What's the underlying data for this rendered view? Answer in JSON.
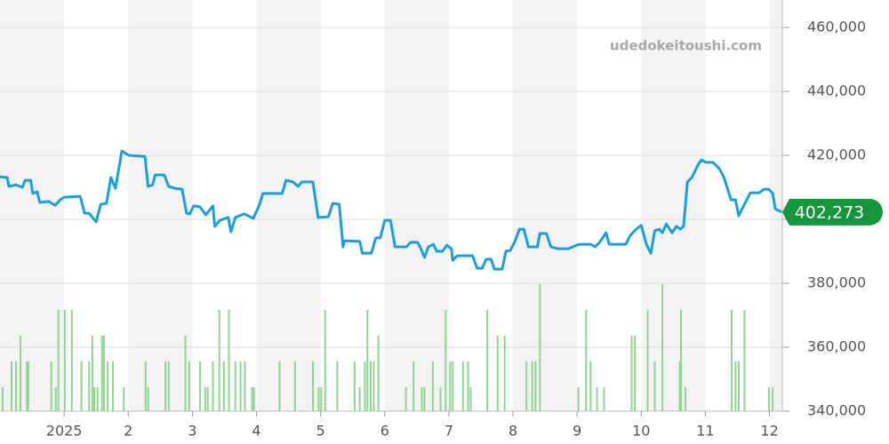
{
  "chart_data": {
    "type": "line",
    "watermark": "udedokeitoushi.com",
    "xlim": [
      0,
      12.2
    ],
    "xticks": [
      {
        "value": 1,
        "label": "2025"
      },
      2,
      3,
      4,
      5,
      6,
      7,
      8,
      9,
      10,
      11,
      12
    ],
    "ylim": [
      340000,
      460000
    ],
    "yticks": [
      {
        "value": 340000,
        "label": "340,000"
      },
      {
        "value": 360000,
        "label": "360,000"
      },
      {
        "value": 380000,
        "label": "380,000"
      },
      {
        "value": 400000,
        "label": "400,000"
      },
      {
        "value": 420000,
        "label": "420,000"
      },
      {
        "value": 440000,
        "label": "440,000"
      },
      {
        "value": 460000,
        "label": "460,000"
      }
    ],
    "grid": true,
    "last_price": {
      "value": 402273,
      "label": "402,273",
      "color": "#16963c"
    },
    "series": [
      {
        "type": "bar",
        "color": "#8dd68d",
        "x": [
          0.04,
          0.18,
          0.25,
          0.32,
          0.42,
          0.44,
          0.8,
          0.87,
          0.91,
          1.01,
          1.12,
          1.27,
          1.39,
          1.44,
          1.47,
          1.52,
          1.59,
          1.62,
          1.68,
          1.76,
          1.93,
          2.27,
          2.31,
          2.58,
          2.63,
          2.89,
          2.95,
          3.12,
          3.2,
          3.24,
          3.32,
          3.42,
          3.49,
          3.57,
          3.67,
          3.75,
          3.82,
          3.93,
          3.96,
          4.36,
          4.6,
          4.88,
          4.97,
          5.01,
          5.07,
          5.26,
          5.53,
          5.61,
          5.69,
          5.73,
          5.78,
          5.83,
          5.9,
          6.33,
          6.45,
          6.58,
          6.62,
          6.75,
          6.87,
          6.95,
          7.02,
          7.06,
          7.22,
          7.3,
          7.34,
          7.6,
          7.76,
          7.87,
          8.21,
          8.3,
          8.35,
          8.42,
          9.02,
          9.14,
          9.21,
          9.31,
          9.42,
          9.85,
          9.9,
          10.1,
          10.21,
          10.33,
          10.6,
          10.62,
          10.69,
          11.41,
          11.47,
          11.52,
          11.61,
          11.99,
          12.05
        ],
        "values": [
          347500,
          355600,
          355600,
          363600,
          355600,
          355600,
          355600,
          347500,
          371700,
          371700,
          371700,
          355600,
          355600,
          363600,
          347500,
          347500,
          363600,
          363600,
          355600,
          355600,
          347500,
          355600,
          347500,
          355600,
          355600,
          363600,
          355600,
          355600,
          347500,
          347500,
          355600,
          371700,
          355600,
          371700,
          355600,
          355600,
          355600,
          347500,
          347500,
          355600,
          355600,
          355600,
          347500,
          347500,
          371700,
          355600,
          355600,
          347500,
          355600,
          371700,
          355600,
          355600,
          363600,
          347500,
          355600,
          347500,
          347500,
          355600,
          347500,
          371700,
          355600,
          355600,
          355600,
          355600,
          347500,
          371700,
          363600,
          363600,
          355600,
          355600,
          355600,
          379700,
          347500,
          371700,
          355600,
          347500,
          347500,
          363600,
          363600,
          371700,
          355600,
          379700,
          355600,
          371700,
          347500,
          371700,
          355600,
          355600,
          371700,
          347500,
          347500
        ]
      },
      {
        "type": "line",
        "color": "#1a9fdc",
        "x": [
          0.0,
          0.11,
          0.14,
          0.25,
          0.35,
          0.39,
          0.48,
          0.51,
          0.58,
          0.62,
          0.76,
          0.86,
          0.94,
          1.0,
          1.25,
          1.32,
          1.39,
          1.5,
          1.57,
          1.66,
          1.73,
          1.8,
          1.9,
          2.01,
          2.26,
          2.31,
          2.38,
          2.42,
          2.56,
          2.63,
          2.73,
          2.84,
          2.91,
          2.96,
          3.02,
          3.12,
          3.21,
          3.32,
          3.35,
          3.43,
          3.56,
          3.6,
          3.67,
          3.81,
          3.95,
          4.04,
          4.1,
          4.4,
          4.46,
          4.57,
          4.65,
          4.71,
          4.88,
          4.96,
          5.12,
          5.19,
          5.29,
          5.35,
          5.37,
          5.61,
          5.65,
          5.79,
          5.86,
          5.93,
          6.0,
          6.09,
          6.16,
          6.34,
          6.4,
          6.51,
          6.55,
          6.62,
          6.68,
          6.76,
          6.81,
          6.9,
          6.97,
          7.04,
          7.06,
          7.13,
          7.37,
          7.44,
          7.52,
          7.58,
          7.66,
          7.71,
          7.83,
          7.89,
          7.96,
          8.03,
          8.1,
          8.17,
          8.24,
          8.38,
          8.42,
          8.52,
          8.59,
          8.7,
          8.86,
          9.03,
          9.21,
          9.28,
          9.35,
          9.45,
          9.5,
          9.76,
          9.83,
          9.92,
          10.0,
          10.08,
          10.15,
          10.21,
          10.28,
          10.33,
          10.39,
          10.48,
          10.55,
          10.61,
          10.66,
          10.72,
          10.79,
          10.89,
          10.94,
          11.01,
          11.12,
          11.22,
          11.29,
          11.4,
          11.47,
          11.52,
          11.61,
          11.7,
          11.84,
          11.91,
          11.99,
          12.05,
          12.09,
          12.19
        ],
        "values": [
          413300,
          413100,
          410300,
          410800,
          410000,
          412200,
          412200,
          408100,
          408600,
          405300,
          405600,
          404400,
          406100,
          406900,
          407200,
          401900,
          401900,
          399200,
          404700,
          405000,
          413100,
          409700,
          421400,
          420000,
          419700,
          410300,
          410800,
          413900,
          413900,
          410300,
          409700,
          409400,
          401900,
          401700,
          404200,
          403900,
          401400,
          404200,
          397800,
          399700,
          400600,
          396100,
          400600,
          401700,
          400300,
          404200,
          408100,
          408100,
          412200,
          411700,
          410300,
          411700,
          411700,
          400600,
          400800,
          405000,
          404700,
          391400,
          393300,
          393100,
          389400,
          389400,
          394200,
          394200,
          399700,
          399700,
          391400,
          391400,
          392800,
          392800,
          391400,
          388100,
          391400,
          392200,
          390000,
          390000,
          391900,
          390800,
          387200,
          388600,
          388600,
          384700,
          384700,
          387500,
          387500,
          384400,
          384400,
          390000,
          390300,
          393100,
          396900,
          396900,
          391400,
          391400,
          395600,
          395600,
          391400,
          390800,
          390800,
          392200,
          392200,
          391400,
          392800,
          395800,
          392200,
          392200,
          395000,
          396900,
          398100,
          392200,
          389400,
          396400,
          396900,
          395800,
          398600,
          395800,
          397800,
          396900,
          397800,
          411700,
          413100,
          417200,
          418600,
          417800,
          417800,
          415800,
          413100,
          406100,
          406100,
          401100,
          404700,
          408300,
          408300,
          409400,
          409400,
          408100,
          403300,
          402273
        ]
      }
    ]
  }
}
